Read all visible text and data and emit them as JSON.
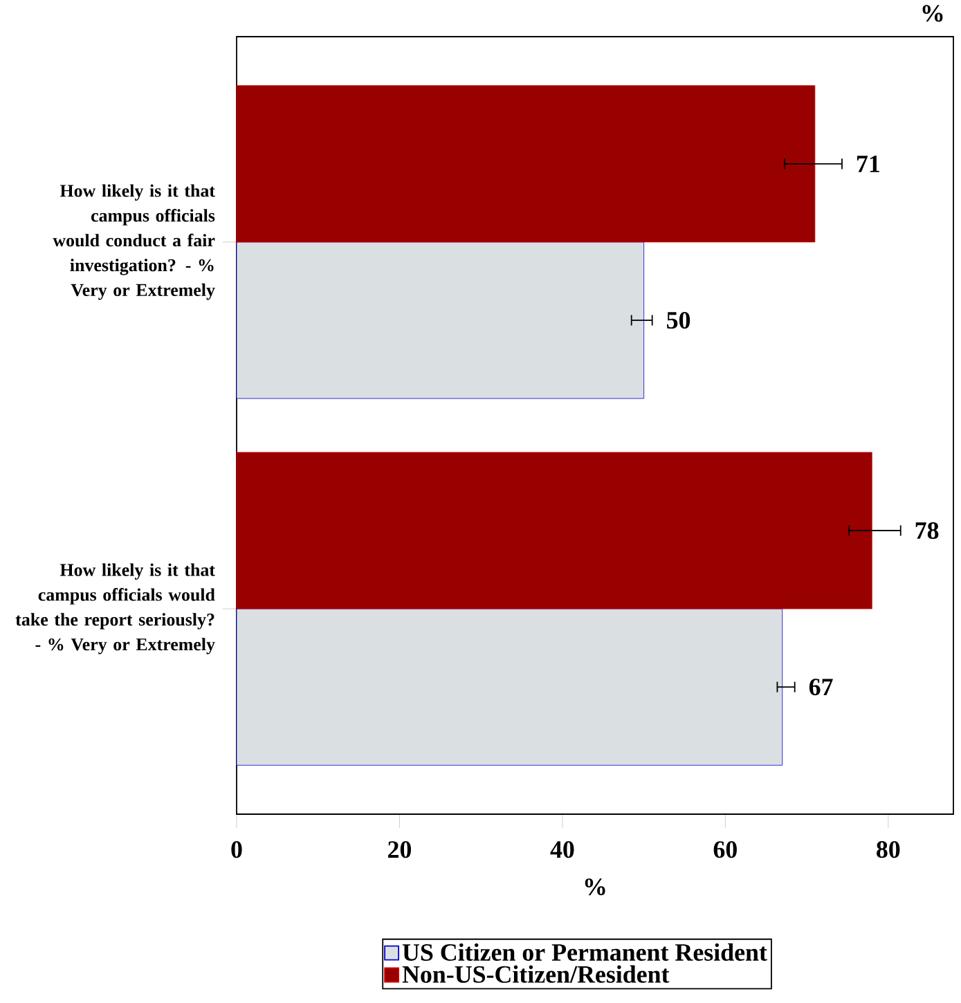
{
  "chart_data": {
    "type": "bar",
    "orientation": "horizontal",
    "categories": [
      "How likely is it that campus officials would conduct a fair investigation? - % Very or Extremely",
      "How likely is it that campus officials would take the report seriously? - % Very or Extremely"
    ],
    "series": [
      {
        "name": "US Citizen or Permanent Resident",
        "color": "#dadfe1",
        "values": [
          50,
          67
        ],
        "errors": [
          [
            48.4,
            51.1
          ],
          [
            66.3,
            68.6
          ]
        ]
      },
      {
        "name": "Non-US-Citizen/Resident",
        "color": "#990000",
        "values": [
          71,
          78
        ],
        "errors": [
          [
            67.2,
            74.4
          ],
          [
            75.1,
            81.6
          ]
        ]
      }
    ],
    "xlim": [
      0,
      88
    ],
    "xticks": [
      0,
      20,
      40,
      60,
      80
    ],
    "xlabel": "%",
    "annotations": [
      "%"
    ],
    "data_labels": true,
    "legend": "bottom"
  }
}
